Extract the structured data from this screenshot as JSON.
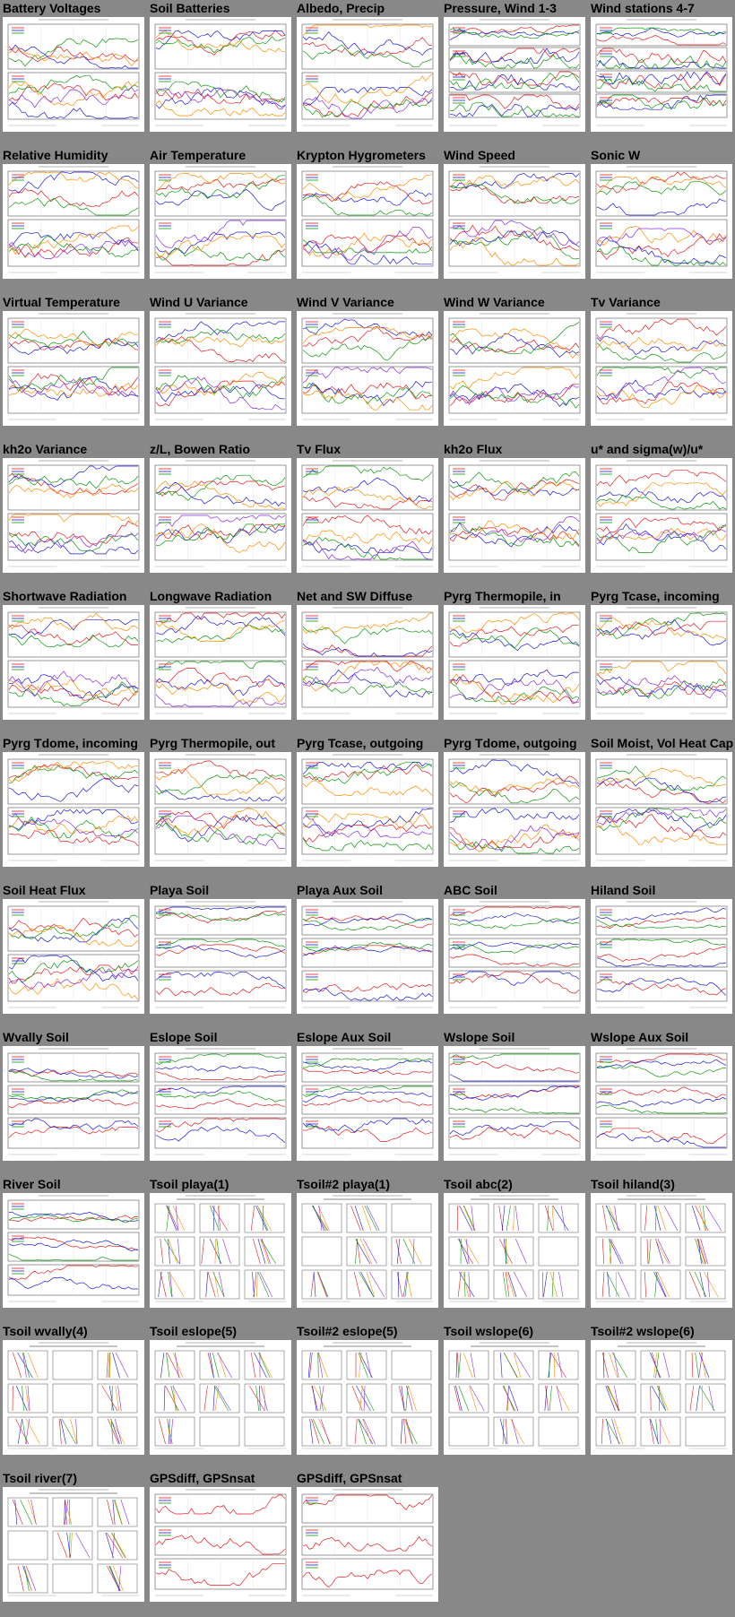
{
  "colors": {
    "page_background": "#888888",
    "thumbnail_background": "#ffffff",
    "title_text": "#000000",
    "series_palette": [
      "#e41a1c",
      "#1a1adf",
      "#0a9a0a",
      "#ff8c00",
      "#8a2be2",
      "#00aacc",
      "#222222"
    ]
  },
  "thumbnails": [
    {
      "title": "Battery Voltages",
      "kind": "dual",
      "seed": 1
    },
    {
      "title": "Soil Batteries",
      "kind": "dual",
      "seed": 2
    },
    {
      "title": "Albedo, Precip",
      "kind": "dual",
      "seed": 3
    },
    {
      "title": "Pressure, Wind 1-3",
      "kind": "quad",
      "seed": 4
    },
    {
      "title": "Wind stations 4-7",
      "kind": "quad",
      "seed": 5
    },
    {
      "title": "Relative Humidity",
      "kind": "dual",
      "seed": 6
    },
    {
      "title": "Air Temperature",
      "kind": "dual",
      "seed": 7
    },
    {
      "title": "Krypton Hygrometers",
      "kind": "dual",
      "seed": 8
    },
    {
      "title": "Wind Speed",
      "kind": "dual",
      "seed": 9
    },
    {
      "title": "Sonic W",
      "kind": "dual",
      "seed": 10
    },
    {
      "title": "Virtual Temperature",
      "kind": "dual",
      "seed": 11
    },
    {
      "title": "Wind U Variance",
      "kind": "dual",
      "seed": 12
    },
    {
      "title": "Wind V Variance",
      "kind": "dual",
      "seed": 13
    },
    {
      "title": "Wind W Variance",
      "kind": "dual",
      "seed": 14
    },
    {
      "title": "Tv Variance",
      "kind": "dual",
      "seed": 15
    },
    {
      "title": "kh2o Variance",
      "kind": "dual",
      "seed": 16
    },
    {
      "title": "z/L, Bowen Ratio",
      "kind": "dual",
      "seed": 17
    },
    {
      "title": "Tv Flux",
      "kind": "dual",
      "seed": 18
    },
    {
      "title": "kh2o Flux",
      "kind": "dual",
      "seed": 19
    },
    {
      "title": "u* and sigma(w)/u*",
      "kind": "dual",
      "seed": 20
    },
    {
      "title": "Shortwave Radiation",
      "kind": "dual",
      "seed": 21
    },
    {
      "title": "Longwave Radiation",
      "kind": "dual",
      "seed": 22
    },
    {
      "title": "Net and SW Diffuse",
      "kind": "dual",
      "seed": 23
    },
    {
      "title": "Pyrg Thermopile, in",
      "kind": "dual",
      "seed": 24
    },
    {
      "title": "Pyrg Tcase, incoming",
      "kind": "dual",
      "seed": 25
    },
    {
      "title": "Pyrg Tdome, incoming",
      "kind": "dual",
      "seed": 26
    },
    {
      "title": "Pyrg Thermopile, out",
      "kind": "dual",
      "seed": 27
    },
    {
      "title": "Pyrg Tcase, outgoing",
      "kind": "dual",
      "seed": 28
    },
    {
      "title": "Pyrg Tdome, outgoing",
      "kind": "dual",
      "seed": 29
    },
    {
      "title": "Soil Moist, Vol Heat Cap",
      "kind": "dual",
      "seed": 30
    },
    {
      "title": "Soil Heat Flux",
      "kind": "dual",
      "seed": 31
    },
    {
      "title": "Playa Soil",
      "kind": "triple",
      "seed": 32
    },
    {
      "title": "Playa Aux Soil",
      "kind": "triple",
      "seed": 33
    },
    {
      "title": "ABC Soil",
      "kind": "triple",
      "seed": 34
    },
    {
      "title": "Hiland Soil",
      "kind": "triple",
      "seed": 35
    },
    {
      "title": "Wvally Soil",
      "kind": "triple",
      "seed": 36
    },
    {
      "title": "Eslope Soil",
      "kind": "triple",
      "seed": 37
    },
    {
      "title": "Eslope Aux Soil",
      "kind": "triple",
      "seed": 38
    },
    {
      "title": "Wslope Soil",
      "kind": "triple",
      "seed": 39
    },
    {
      "title": "Wslope Aux Soil",
      "kind": "triple",
      "seed": 40
    },
    {
      "title": "River Soil",
      "kind": "triple",
      "seed": 41
    },
    {
      "title": "Tsoil playa(1)",
      "kind": "profile",
      "seed": 42
    },
    {
      "title": "Tsoil#2 playa(1)",
      "kind": "profile",
      "seed": 43
    },
    {
      "title": "Tsoil abc(2)",
      "kind": "profile",
      "seed": 44
    },
    {
      "title": "Tsoil hiland(3)",
      "kind": "profile",
      "seed": 45
    },
    {
      "title": "Tsoil wvally(4)",
      "kind": "profile",
      "seed": 46
    },
    {
      "title": "Tsoil eslope(5)",
      "kind": "profile",
      "seed": 47
    },
    {
      "title": "Tsoil#2 eslope(5)",
      "kind": "profile",
      "seed": 48
    },
    {
      "title": "Tsoil wslope(6)",
      "kind": "profile",
      "seed": 49
    },
    {
      "title": "Tsoil#2 wslope(6)",
      "kind": "profile",
      "seed": 50
    },
    {
      "title": "Tsoil river(7)",
      "kind": "profile",
      "seed": 51
    },
    {
      "title": "GPSdiff, GPSnsat",
      "kind": "gps",
      "seed": 52
    },
    {
      "title": "GPSdiff, GPSnsat",
      "kind": "gps",
      "seed": 53
    }
  ]
}
